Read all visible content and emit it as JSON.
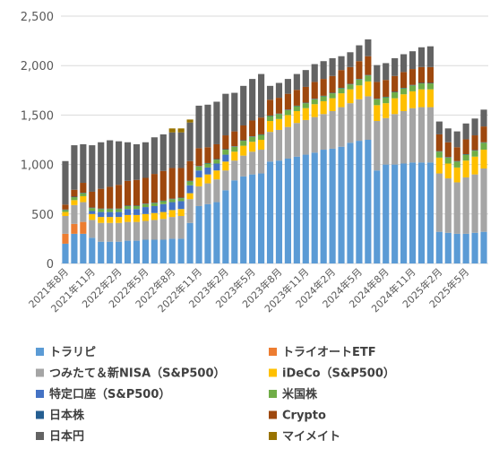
{
  "chart_data": {
    "type": "bar",
    "stacked": true,
    "ylim": [
      0,
      2500
    ],
    "y_ticks": [
      "0",
      "500",
      "1,000",
      "1,500",
      "2,000",
      "2,500"
    ],
    "grid": "horizontal",
    "legend_position": "bottom",
    "x_tick_labels": [
      "2021年8月",
      "2021年11月",
      "2022年2月",
      "2022年5月",
      "2022年8月",
      "2022年11月",
      "2023年2月",
      "2023年5月",
      "2023年8月",
      "2023年11月",
      "2024年2月",
      "2024年5月",
      "2024年8月",
      "2024年11月",
      "2025年2月",
      "2025年5月"
    ],
    "x_tick_every": 3,
    "series": [
      {
        "name": "トラリピ",
        "color": "#5b9bd5",
        "values": [
          200,
          300,
          300,
          260,
          220,
          220,
          220,
          230,
          230,
          240,
          240,
          240,
          250,
          250,
          410,
          580,
          600,
          620,
          740,
          840,
          880,
          900,
          910,
          1030,
          1040,
          1060,
          1080,
          1100,
          1120,
          1150,
          1160,
          1180,
          1220,
          1240,
          1250,
          940,
          1000,
          1000,
          1010,
          1020,
          1020,
          1020,
          320,
          310,
          300,
          300,
          310,
          320
        ]
      },
      {
        "name": "トライオートETF",
        "color": "#ed7d31",
        "values": [
          100,
          100,
          120,
          0,
          0,
          0,
          0,
          0,
          0,
          0,
          0,
          0,
          0,
          0,
          0,
          0,
          0,
          0,
          0,
          0,
          0,
          0,
          0,
          0,
          0,
          0,
          0,
          0,
          0,
          0,
          0,
          0,
          0,
          0,
          0,
          0,
          0,
          0,
          0,
          0,
          0,
          0,
          0,
          0,
          0,
          0,
          0,
          0
        ]
      },
      {
        "name": "つみたて＆新NISA（S&P500）",
        "color": "#a5a5a5",
        "values": [
          180,
          190,
          200,
          180,
          190,
          190,
          190,
          190,
          190,
          190,
          200,
          210,
          220,
          230,
          240,
          200,
          210,
          230,
          200,
          200,
          210,
          230,
          240,
          300,
          310,
          320,
          340,
          350,
          360,
          360,
          380,
          400,
          400,
          420,
          440,
          500,
          470,
          510,
          530,
          550,
          560,
          560,
          590,
          550,
          520,
          570,
          590,
          640
        ]
      },
      {
        "name": "iDeCo（S&P500）",
        "color": "#ffc000",
        "values": [
          40,
          50,
          60,
          60,
          60,
          60,
          60,
          70,
          70,
          70,
          70,
          70,
          70,
          70,
          60,
          90,
          90,
          90,
          90,
          90,
          100,
          100,
          100,
          110,
          110,
          120,
          120,
          120,
          130,
          130,
          130,
          140,
          140,
          140,
          150,
          160,
          150,
          160,
          170,
          170,
          180,
          180,
          160,
          150,
          150,
          170,
          180,
          190
        ]
      },
      {
        "name": "特定口座（S&P500）",
        "color": "#4472c4",
        "values": [
          0,
          0,
          0,
          30,
          50,
          50,
          50,
          60,
          60,
          70,
          70,
          80,
          80,
          80,
          80,
          70,
          70,
          70,
          70,
          0,
          0,
          0,
          0,
          0,
          0,
          0,
          0,
          0,
          0,
          0,
          0,
          0,
          0,
          0,
          0,
          0,
          0,
          0,
          0,
          0,
          0,
          0,
          0,
          0,
          0,
          0,
          0,
          0
        ]
      },
      {
        "name": "米国株",
        "color": "#70ad47",
        "values": [
          20,
          30,
          30,
          30,
          30,
          30,
          30,
          30,
          30,
          30,
          30,
          30,
          30,
          30,
          40,
          40,
          40,
          40,
          50,
          50,
          50,
          50,
          50,
          50,
          50,
          50,
          50,
          50,
          50,
          50,
          50,
          50,
          50,
          60,
          60,
          60,
          60,
          60,
          60,
          60,
          60,
          60,
          60,
          60,
          60,
          60,
          60,
          70
        ]
      },
      {
        "name": "日本株",
        "color": "#255e91",
        "values": [
          5,
          5,
          5,
          5,
          5,
          5,
          5,
          5,
          5,
          5,
          5,
          5,
          5,
          5,
          5,
          5,
          5,
          5,
          5,
          5,
          5,
          5,
          5,
          5,
          5,
          5,
          5,
          5,
          5,
          5,
          5,
          5,
          5,
          5,
          5,
          5,
          5,
          5,
          5,
          5,
          5,
          5,
          5,
          5,
          5,
          5,
          5,
          5
        ]
      },
      {
        "name": "Crypto",
        "color": "#9e480e",
        "values": [
          50,
          70,
          100,
          160,
          200,
          220,
          240,
          250,
          260,
          260,
          290,
          300,
          310,
          300,
          200,
          180,
          160,
          150,
          140,
          150,
          150,
          160,
          170,
          160,
          160,
          160,
          160,
          160,
          170,
          170,
          170,
          180,
          170,
          180,
          190,
          170,
          170,
          160,
          160,
          160,
          160,
          160,
          170,
          150,
          140,
          150,
          150,
          160
        ]
      },
      {
        "name": "日本円",
        "color": "#636363",
        "values": [
          440,
          450,
          390,
          470,
          470,
          470,
          440,
          390,
          360,
          360,
          370,
          370,
          360,
          360,
          390,
          430,
          430,
          430,
          420,
          390,
          400,
          420,
          440,
          140,
          150,
          150,
          160,
          170,
          180,
          180,
          180,
          140,
          150,
          160,
          170,
          170,
          170,
          180,
          180,
          180,
          200,
          210,
          130,
          140,
          160,
          160,
          170,
          170
        ]
      },
      {
        "name": "マイメイト",
        "color": "#997300",
        "values": [
          0,
          0,
          0,
          0,
          0,
          0,
          0,
          0,
          0,
          0,
          0,
          0,
          40,
          40,
          30,
          0,
          0,
          0,
          0,
          0,
          0,
          0,
          0,
          0,
          0,
          0,
          0,
          0,
          0,
          0,
          0,
          0,
          0,
          0,
          0,
          0,
          0,
          0,
          0,
          0,
          0,
          0,
          0,
          0,
          0,
          0,
          0,
          0
        ]
      }
    ],
    "legend_order": [
      [
        "トラリピ",
        "トライオートETF"
      ],
      [
        "つみたて＆新NISA（S&P500）",
        "iDeCo（S&P500）"
      ],
      [
        "特定口座（S&P500）",
        "米国株"
      ],
      [
        "日本株",
        "Crypto"
      ],
      [
        "日本円",
        "マイメイト"
      ]
    ]
  }
}
